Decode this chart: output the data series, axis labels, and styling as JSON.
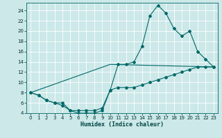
{
  "xlabel": "Humidex (Indice chaleur)",
  "background_color": "#cce8e8",
  "grid_color": "#ffffff",
  "line_color": "#006868",
  "xlim": [
    -0.5,
    23.5
  ],
  "ylim": [
    4,
    25.5
  ],
  "xticks": [
    0,
    1,
    2,
    3,
    4,
    5,
    6,
    7,
    8,
    9,
    10,
    11,
    12,
    13,
    14,
    15,
    16,
    17,
    18,
    19,
    20,
    21,
    22,
    23
  ],
  "yticks": [
    4,
    6,
    8,
    10,
    12,
    14,
    16,
    18,
    20,
    22,
    24
  ],
  "line1_x": [
    0,
    1,
    2,
    3,
    4,
    5,
    6,
    7,
    8,
    9,
    10,
    11,
    12,
    13,
    14,
    15,
    16,
    17,
    18,
    19,
    20,
    21,
    22,
    23
  ],
  "line1_y": [
    8,
    7.5,
    6.5,
    6.0,
    6.0,
    4.5,
    4.5,
    4.5,
    4.5,
    5.0,
    8.5,
    13.5,
    13.5,
    14.0,
    17.0,
    23.0,
    25.0,
    23.5,
    20.5,
    19.0,
    20.0,
    16.0,
    14.5,
    13.0
  ],
  "line2_x": [
    0,
    1,
    2,
    3,
    4,
    5,
    6,
    7,
    8,
    9,
    10,
    11,
    12,
    13,
    14,
    15,
    16,
    17,
    18,
    19,
    20,
    21,
    22,
    23
  ],
  "line2_y": [
    8,
    7.5,
    6.5,
    6.0,
    5.5,
    4.5,
    4.0,
    4.0,
    4.0,
    4.5,
    8.5,
    9.0,
    9.0,
    9.0,
    9.5,
    10.0,
    10.5,
    11.0,
    11.5,
    12.0,
    12.5,
    13.0,
    13.0,
    13.0
  ],
  "line3_x": [
    0,
    10,
    23
  ],
  "line3_y": [
    8,
    13.5,
    13.0
  ]
}
